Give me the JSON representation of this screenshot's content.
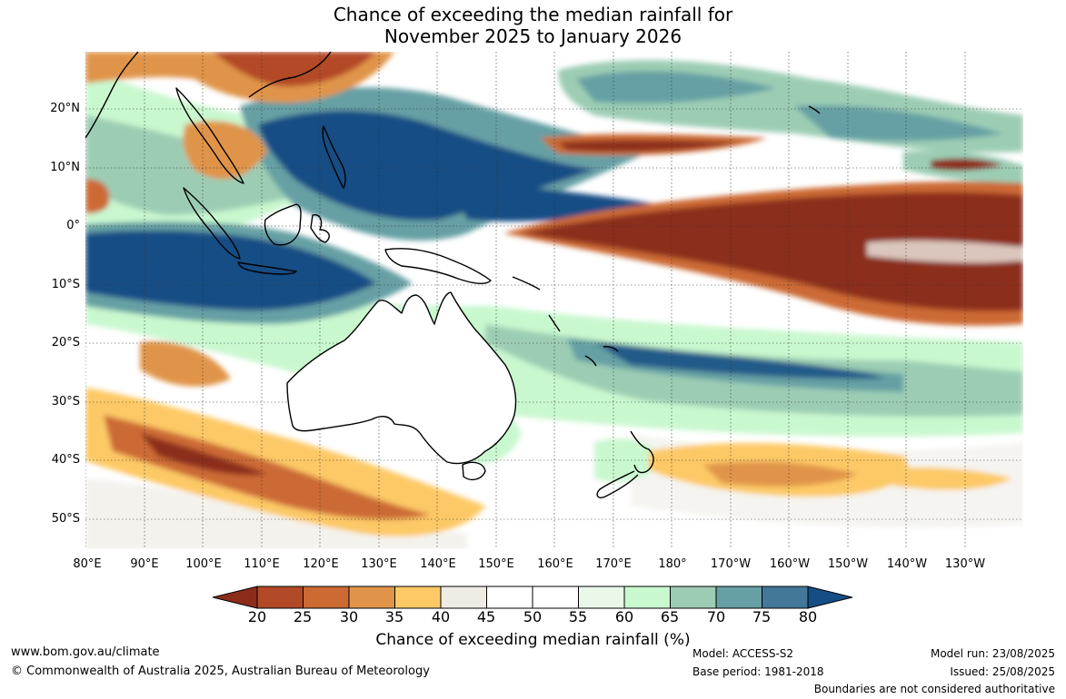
{
  "title_line1": "Chance of exceeding the median rainfall for",
  "title_line2": "November 2025 to January 2026",
  "latitude_labels": [
    "20°N",
    "10°N",
    "0°",
    "10°S",
    "20°S",
    "30°S",
    "40°S",
    "50°S"
  ],
  "longitude_labels": [
    "80°E",
    "90°E",
    "100°E",
    "110°E",
    "120°E",
    "130°E",
    "140°E",
    "150°E",
    "160°E",
    "170°E",
    "180°",
    "170°W",
    "160°W",
    "150°W",
    "140°W",
    "130°W"
  ],
  "colorbar": {
    "label": "Chance of exceeding median rainfall (%)",
    "ticks": [
      "20",
      "25",
      "30",
      "35",
      "40",
      "45",
      "50",
      "55",
      "60",
      "65",
      "70",
      "75",
      "80"
    ],
    "colors": [
      "#8c2d1c",
      "#b34a27",
      "#cc6a34",
      "#e0944a",
      "#fdc966",
      "#efece6",
      "#ffffff",
      "#ffffff",
      "#eaf8ea",
      "#c9f8cf",
      "#9ccdb4",
      "#66a0a4",
      "#437898",
      "#164d85"
    ]
  },
  "footer": {
    "website": "www.bom.gov.au/climate",
    "copyright": "© Commonwealth of Australia 2025, Australian Bureau of Meteorology",
    "model": "Model: ACCESS-S2",
    "base_period": "Base period: 1981-2018",
    "model_run": "Model run: 23/08/2025",
    "issued": "Issued: 25/08/2025",
    "disclaimer": "Boundaries are not considered authoritative"
  },
  "palette": {
    "dry_deep": "#8c2d1c",
    "dry": "#cc6a34",
    "dry_light": "#fdc966",
    "neutral": "#efece6",
    "wet_light": "#c9f8cf",
    "wet_mid": "#66a0a4",
    "wet_deep": "#164d85",
    "coastline": "#000000"
  }
}
